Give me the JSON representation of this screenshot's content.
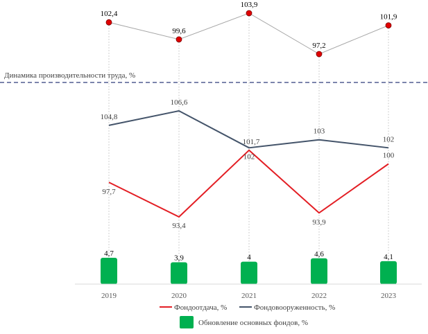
{
  "chart_data": {
    "type": "line",
    "categories": [
      "2019",
      "2020",
      "2021",
      "2022",
      "2023"
    ],
    "subtitle": "Динамика производительности труда, %",
    "productivity": {
      "values": [
        102.4,
        99.6,
        103.9,
        97.2,
        101.9
      ],
      "labels": [
        "102,4",
        "99,6",
        "103,9",
        "97,2",
        "101,9"
      ],
      "color": "#a6a6a6",
      "marker_color": "#e00000"
    },
    "series": [
      {
        "name": "Фондоотдача, %",
        "values": [
          97.7,
          93.4,
          101.7,
          93.9,
          100
        ],
        "labels": [
          "97,7",
          "93,4",
          "101,7",
          "93,9",
          "100"
        ],
        "color": "#e31e24"
      },
      {
        "name": "Фондовооруженность, %",
        "values": [
          104.8,
          106.6,
          102,
          103,
          102
        ],
        "labels": [
          "104,8",
          "106,6",
          "102",
          "103",
          "102"
        ],
        "color": "#44546a"
      }
    ],
    "bars": {
      "name": "Обновление основных фондов, %",
      "values": [
        4.7,
        3.9,
        4,
        4.6,
        4.1
      ],
      "labels": [
        "4,7",
        "3,9",
        "4",
        "4,6",
        "4,1"
      ],
      "color": "#00b050"
    },
    "divider_color": "#2f3a7a"
  }
}
